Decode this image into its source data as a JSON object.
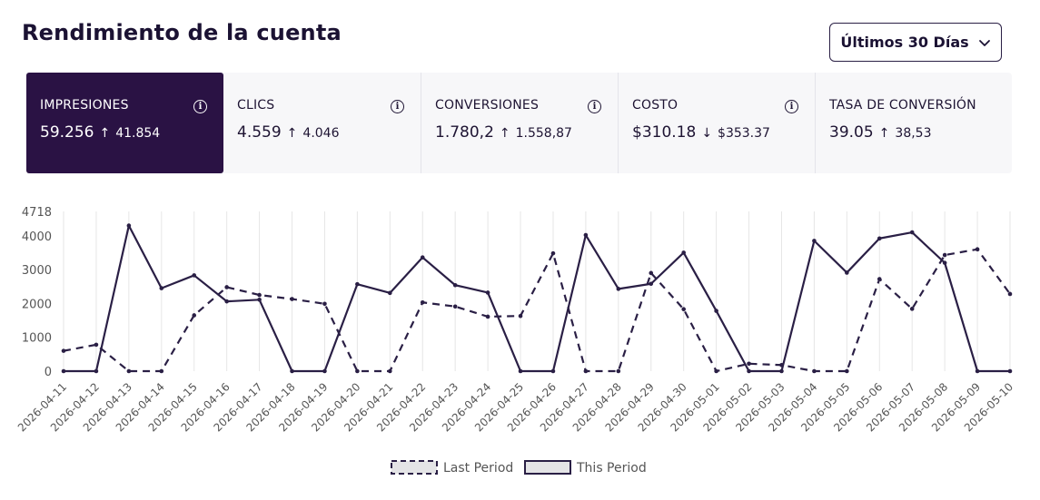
{
  "header": {
    "title": "Rendimiento de la cuenta"
  },
  "date_range": {
    "label": "Últimos 30 Días",
    "icon": "chevron-down-icon"
  },
  "metrics": [
    {
      "label": "IMPRESIONES",
      "value": "59.256",
      "arrow": "↑",
      "previous": "41.854",
      "info_icon": "info-icon",
      "active": true
    },
    {
      "label": "CLICS",
      "value": "4.559",
      "arrow": "↑",
      "previous": "4.046",
      "info_icon": "info-icon"
    },
    {
      "label": "CONVERSIONES",
      "value": "1.780,2",
      "arrow": "↑",
      "previous": "1.558,87",
      "info_icon": "info-icon"
    },
    {
      "label": "COSTO",
      "value": "$310.18",
      "arrow": "↓",
      "previous": "$353.37",
      "info_icon": "info-icon"
    },
    {
      "label": "TASA DE CONVERSIÓN",
      "value": "39.05",
      "arrow": "↑",
      "previous": "38,53"
    }
  ],
  "colors": {
    "accent": "#2a1244",
    "line": "#2a1f45",
    "grid": "#e6e6e6"
  },
  "chart_data": {
    "type": "line",
    "x": [
      "2026-04-11",
      "2026-04-12",
      "2026-04-13",
      "2026-04-14",
      "2026-04-15",
      "2026-04-16",
      "2026-04-17",
      "2026-04-18",
      "2026-04-19",
      "2026-04-20",
      "2026-04-21",
      "2026-04-22",
      "2026-04-23",
      "2026-04-24",
      "2026-04-25",
      "2026-04-26",
      "2026-04-27",
      "2026-04-28",
      "2026-04-29",
      "2026-04-30",
      "2026-05-01",
      "2026-05-02",
      "2026-05-03",
      "2026-05-04",
      "2026-05-05",
      "2026-05-06",
      "2026-05-07",
      "2026-05-08",
      "2026-05-09",
      "2026-05-10"
    ],
    "y_ticks": [
      "0",
      "1000",
      "2000",
      "3000",
      "4000",
      "4718"
    ],
    "ylim": [
      0,
      4718
    ],
    "grid": "vertical",
    "legend_position": "bottom",
    "series": [
      {
        "name": "Last Period",
        "style": "dashed",
        "values": [
          600,
          780,
          0,
          0,
          1650,
          2480,
          2250,
          2130,
          1990,
          0,
          0,
          2030,
          1910,
          1610,
          1630,
          3480,
          0,
          0,
          2900,
          1830,
          0,
          220,
          180,
          0,
          0,
          2720,
          1840,
          3430,
          3600,
          2280
        ]
      },
      {
        "name": "This Period",
        "style": "solid",
        "values": [
          0,
          0,
          4300,
          2450,
          2830,
          2060,
          2110,
          0,
          0,
          2570,
          2310,
          3360,
          2540,
          2320,
          0,
          0,
          4020,
          2430,
          2580,
          3500,
          1780,
          0,
          0,
          3850,
          2910,
          3920,
          4100,
          3200,
          0,
          0
        ]
      }
    ]
  }
}
